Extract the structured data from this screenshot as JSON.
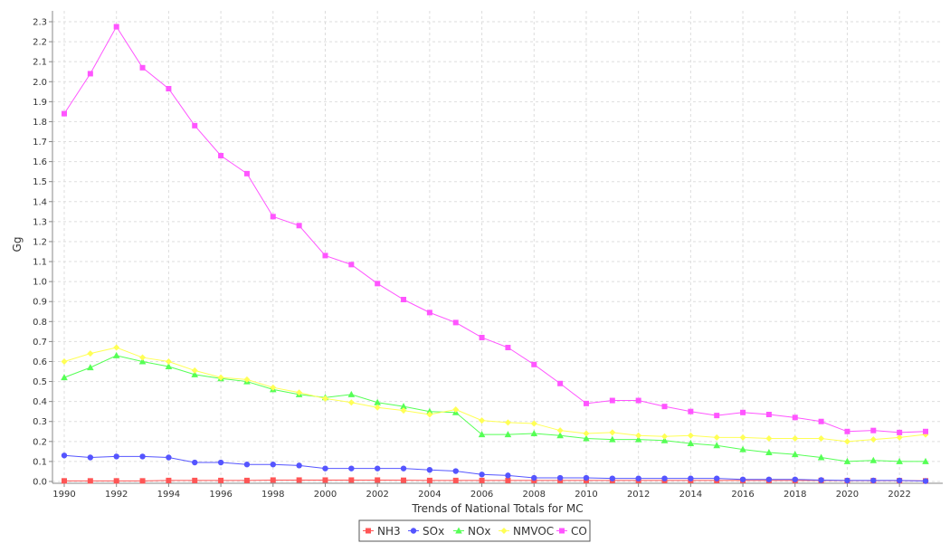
{
  "chart_data": {
    "type": "line",
    "xlabel": "Trends of National Totals for MC",
    "ylabel": "Gg",
    "ylim": [
      0,
      2.3
    ],
    "xlim": [
      1990,
      2023
    ],
    "y_ticks": [
      "0.0",
      "0.1",
      "0.2",
      "0.3",
      "0.4",
      "0.5",
      "0.6",
      "0.7",
      "0.8",
      "0.9",
      "1.0",
      "1.1",
      "1.2",
      "1.3",
      "1.4",
      "1.5",
      "1.6",
      "1.7",
      "1.8",
      "1.9",
      "2.0",
      "2.1",
      "2.2",
      "2.3"
    ],
    "x_ticks": [
      "1990",
      "1992",
      "1994",
      "1996",
      "1998",
      "2000",
      "2002",
      "2004",
      "2006",
      "2008",
      "2010",
      "2012",
      "2014",
      "2016",
      "2018",
      "2020",
      "2022"
    ],
    "grid": true,
    "legend_position": "bottom-center",
    "x": [
      1990,
      1991,
      1992,
      1993,
      1994,
      1995,
      1996,
      1997,
      1998,
      1999,
      2000,
      2001,
      2002,
      2003,
      2004,
      2005,
      2006,
      2007,
      2008,
      2009,
      2010,
      2011,
      2012,
      2013,
      2014,
      2015,
      2016,
      2017,
      2018,
      2019,
      2020,
      2021,
      2022,
      2023
    ],
    "series": [
      {
        "name": "NH3",
        "color": "#ff5555",
        "marker": "square",
        "values": [
          0.003,
          0.003,
          0.003,
          0.003,
          0.005,
          0.005,
          0.005,
          0.005,
          0.007,
          0.007,
          0.007,
          0.007,
          0.007,
          0.006,
          0.005,
          0.005,
          0.005,
          0.005,
          0.005,
          0.005,
          0.005,
          0.005,
          0.005,
          0.005,
          0.005,
          0.005,
          0.005,
          0.005,
          0.005,
          0.005,
          0.004,
          0.004,
          0.004,
          0.003
        ]
      },
      {
        "name": "SOx",
        "color": "#5555ff",
        "marker": "circle",
        "values": [
          0.13,
          0.12,
          0.125,
          0.125,
          0.12,
          0.095,
          0.095,
          0.085,
          0.085,
          0.08,
          0.065,
          0.065,
          0.065,
          0.065,
          0.058,
          0.052,
          0.035,
          0.03,
          0.018,
          0.018,
          0.018,
          0.015,
          0.015,
          0.015,
          0.015,
          0.015,
          0.01,
          0.01,
          0.01,
          0.007,
          0.005,
          0.005,
          0.005,
          0.002
        ]
      },
      {
        "name": "NOx",
        "color": "#55ff55",
        "marker": "triangle",
        "values": [
          0.52,
          0.57,
          0.63,
          0.6,
          0.575,
          0.535,
          0.515,
          0.5,
          0.46,
          0.435,
          0.42,
          0.435,
          0.395,
          0.375,
          0.35,
          0.345,
          0.235,
          0.235,
          0.24,
          0.23,
          0.215,
          0.21,
          0.21,
          0.205,
          0.19,
          0.18,
          0.16,
          0.145,
          0.135,
          0.12,
          0.1,
          0.105,
          0.1,
          0.1
        ]
      },
      {
        "name": "NMVOC",
        "color": "#ffff55",
        "marker": "diamond",
        "values": [
          0.6,
          0.64,
          0.67,
          0.62,
          0.6,
          0.555,
          0.52,
          0.51,
          0.47,
          0.445,
          0.415,
          0.395,
          0.37,
          0.355,
          0.335,
          0.36,
          0.305,
          0.295,
          0.29,
          0.255,
          0.24,
          0.245,
          0.23,
          0.225,
          0.23,
          0.22,
          0.22,
          0.215,
          0.215,
          0.215,
          0.2,
          0.21,
          0.22,
          0.235
        ]
      },
      {
        "name": "CO",
        "color": "#ff55ff",
        "marker": "square",
        "values": [
          1.84,
          2.04,
          2.275,
          2.07,
          1.965,
          1.78,
          1.63,
          1.54,
          1.325,
          1.28,
          1.13,
          1.085,
          0.99,
          0.91,
          0.845,
          0.795,
          0.72,
          0.67,
          0.585,
          0.49,
          0.39,
          0.405,
          0.405,
          0.375,
          0.35,
          0.33,
          0.345,
          0.335,
          0.32,
          0.3,
          0.25,
          0.255,
          0.245,
          0.25
        ]
      }
    ]
  }
}
